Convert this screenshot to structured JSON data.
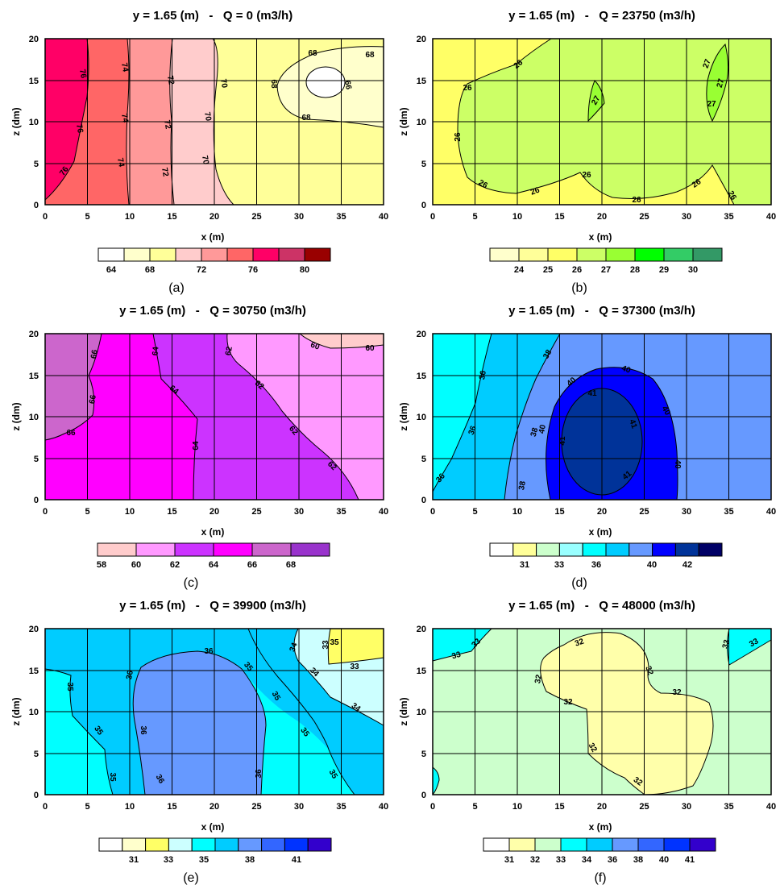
{
  "panels": [
    {
      "title": "y = 1.65 (m)   -   Q = 0 (m3/h)",
      "xlabel": "x (m)",
      "ylabel": "z (dm)",
      "caption": "(a)",
      "xticks": [
        "0",
        "5",
        "10",
        "15",
        "20",
        "25",
        "30",
        "35",
        "40"
      ],
      "yticks": [
        "0",
        "5",
        "10",
        "15",
        "20"
      ],
      "legend": {
        "colors": [
          "#ffffff",
          "#ffffcc",
          "#ffff99",
          "#ffcccc",
          "#ff9999",
          "#ff6666",
          "#ff0066",
          "#cc3366",
          "#990000"
        ],
        "labels": [
          "64",
          "68",
          "72",
          "76",
          "80"
        ]
      },
      "fill_colors": {
        "region1": "#ff0066",
        "region2": "#ff6666",
        "region3": "#ff9999",
        "region4": "#ffcccc",
        "region5": "#ffff99",
        "region6": "#ffffcc",
        "region7": "#ffffff"
      },
      "contour_labels": [
        "76",
        "76",
        "76",
        "74",
        "74",
        "74",
        "72",
        "72",
        "72",
        "70",
        "70",
        "70",
        "68",
        "68",
        "68",
        "68",
        "66"
      ]
    },
    {
      "title": "y = 1.65 (m)   -   Q = 23750 (m3/h)",
      "xlabel": "x (m)",
      "ylabel": "z (dm)",
      "caption": "(b)",
      "xticks": [
        "0",
        "5",
        "10",
        "15",
        "20",
        "25",
        "30",
        "35",
        "40"
      ],
      "yticks": [
        "0",
        "5",
        "10",
        "15",
        "20"
      ],
      "legend": {
        "colors": [
          "#ffffcc",
          "#ffff99",
          "#ffff66",
          "#ccff66",
          "#99ff33",
          "#00ff00",
          "#33cc66",
          "#339966"
        ],
        "labels": [
          "24",
          "25",
          "26",
          "27",
          "28",
          "29",
          "30"
        ]
      },
      "fill_colors": {
        "region1": "#ffff66",
        "region2": "#ccff66",
        "region3": "#99ff33"
      },
      "contour_labels": [
        "26",
        "26",
        "26",
        "26",
        "26",
        "26",
        "26",
        "26",
        "26",
        "27",
        "27",
        "27",
        "27"
      ]
    },
    {
      "title": "y = 1.65 (m)   -   Q = 30750 (m3/h)",
      "xlabel": "x (m)",
      "ylabel": "z (dm)",
      "caption": "(c)",
      "xticks": [
        "0",
        "5",
        "10",
        "15",
        "20",
        "25",
        "30",
        "35",
        "40"
      ],
      "yticks": [
        "0",
        "5",
        "10",
        "15",
        "20"
      ],
      "legend": {
        "colors": [
          "#ffcccc",
          "#ff99ff",
          "#cc33ff",
          "#ff00ff",
          "#cc66cc",
          "#9933cc"
        ],
        "labels": [
          "58",
          "60",
          "62",
          "64",
          "66",
          "68"
        ]
      },
      "fill_colors": {
        "region1": "#cc66cc",
        "region2": "#ff00ff",
        "region3": "#cc33ff",
        "region4": "#ff99ff",
        "region5": "#ffcccc"
      },
      "contour_labels": [
        "66",
        "66",
        "66",
        "64",
        "64",
        "64",
        "62",
        "62",
        "62",
        "62",
        "60",
        "60"
      ]
    },
    {
      "title": "y = 1.65 (m)   -   Q = 37300 (m3/h)",
      "xlabel": "x (m)",
      "ylabel": "z (dm)",
      "caption": "(d)",
      "xticks": [
        "0",
        "5",
        "10",
        "15",
        "20",
        "25",
        "30",
        "35",
        "40"
      ],
      "yticks": [
        "0",
        "5",
        "10",
        "15",
        "20"
      ],
      "legend": {
        "colors": [
          "#ffffff",
          "#ffff99",
          "#ccffcc",
          "#99ffff",
          "#00ffff",
          "#00ccff",
          "#6699ff",
          "#0000ff",
          "#003399",
          "#000066"
        ],
        "labels": [
          "31",
          "33",
          "36",
          "40",
          "42"
        ]
      },
      "fill_colors": {
        "region1": "#00ccff",
        "region2": "#00ffff",
        "region3": "#6699ff",
        "region4": "#0000ff",
        "region5": "#003399"
      },
      "contour_labels": [
        "36",
        "36",
        "36",
        "38",
        "38",
        "38",
        "40",
        "40",
        "40",
        "40",
        "40",
        "41",
        "41",
        "41",
        "41"
      ]
    },
    {
      "title": "y = 1.65 (m)   -   Q = 39900 (m3/h)",
      "xlabel": "x (m)",
      "ylabel": "z (dm)",
      "caption": "(e)",
      "xticks": [
        "0",
        "5",
        "10",
        "15",
        "20",
        "25",
        "30",
        "35",
        "40"
      ],
      "yticks": [
        "0",
        "5",
        "10",
        "15",
        "20"
      ],
      "legend": {
        "colors": [
          "#ffffff",
          "#ffffcc",
          "#ffff66",
          "#ccffff",
          "#00ffff",
          "#00ccff",
          "#6699ff",
          "#3366ff",
          "#0033ff",
          "#3300cc"
        ],
        "labels": [
          "31",
          "33",
          "35",
          "38",
          "41"
        ]
      },
      "fill_colors": {
        "region1": "#00ffff",
        "region2": "#00ccff",
        "region3": "#6699ff",
        "region4": "#ccffff",
        "region5": "#ffff66"
      },
      "contour_labels": [
        "35",
        "35",
        "35",
        "35",
        "36",
        "36",
        "36",
        "36",
        "36",
        "35",
        "35",
        "35",
        "35",
        "34",
        "34",
        "34",
        "33",
        "33"
      ]
    },
    {
      "title": "y = 1.65 (m)   -   Q = 48000 (m3/h)",
      "xlabel": "x (m)",
      "ylabel": "z (dm)",
      "caption": "(f)",
      "xticks": [
        "0",
        "5",
        "10",
        "15",
        "20",
        "25",
        "30",
        "35",
        "40"
      ],
      "yticks": [
        "0",
        "5",
        "10",
        "15",
        "20"
      ],
      "legend": {
        "colors": [
          "#ffffff",
          "#ffffaa",
          "#ccffcc",
          "#00ffff",
          "#00ccff",
          "#6699ff",
          "#3366ff",
          "#0033ff",
          "#3300cc"
        ],
        "labels": [
          "31",
          "32",
          "33",
          "34",
          "36",
          "38",
          "40",
          "41"
        ]
      },
      "fill_colors": {
        "region1": "#ccffcc",
        "region2": "#ffffaa",
        "region3": "#00ffff"
      },
      "contour_labels": [
        "33",
        "33",
        "33",
        "33",
        "32",
        "32",
        "32",
        "32",
        "32",
        "32",
        "32"
      ]
    }
  ],
  "chart_data": [
    {
      "type": "heatmap",
      "title": "y = 1.65 (m)   -   Q = 0 (m3/h)",
      "xlabel": "x (m)",
      "ylabel": "z (dm)",
      "xlim": [
        0,
        40
      ],
      "ylim": [
        0,
        20
      ],
      "contour_levels": [
        66,
        68,
        70,
        72,
        74,
        76
      ]
    },
    {
      "type": "heatmap",
      "title": "y = 1.65 (m)   -   Q = 23750 (m3/h)",
      "xlabel": "x (m)",
      "ylabel": "z (dm)",
      "xlim": [
        0,
        40
      ],
      "ylim": [
        0,
        20
      ],
      "contour_levels": [
        26,
        27
      ]
    },
    {
      "type": "heatmap",
      "title": "y = 1.65 (m)   -   Q = 30750 (m3/h)",
      "xlabel": "x (m)",
      "ylabel": "z (dm)",
      "xlim": [
        0,
        40
      ],
      "ylim": [
        0,
        20
      ],
      "contour_levels": [
        60,
        62,
        64,
        66
      ]
    },
    {
      "type": "heatmap",
      "title": "y = 1.65 (m)   -   Q = 37300 (m3/h)",
      "xlabel": "x (m)",
      "ylabel": "z (dm)",
      "xlim": [
        0,
        40
      ],
      "ylim": [
        0,
        20
      ],
      "contour_levels": [
        36,
        38,
        40,
        41
      ]
    },
    {
      "type": "heatmap",
      "title": "y = 1.65 (m)   -   Q = 39900 (m3/h)",
      "xlabel": "x (m)",
      "ylabel": "z (dm)",
      "xlim": [
        0,
        40
      ],
      "ylim": [
        0,
        20
      ],
      "contour_levels": [
        33,
        34,
        35,
        36
      ]
    },
    {
      "type": "heatmap",
      "title": "y = 1.65 (m)   -   Q = 48000 (m3/h)",
      "xlabel": "x (m)",
      "ylabel": "z (dm)",
      "xlim": [
        0,
        40
      ],
      "ylim": [
        0,
        20
      ],
      "contour_levels": [
        32,
        33
      ]
    }
  ]
}
